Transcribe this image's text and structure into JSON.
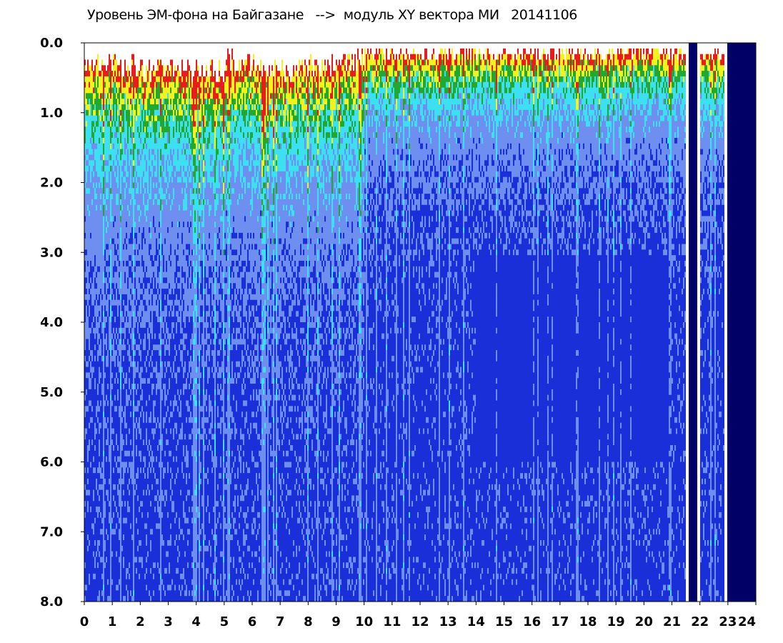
{
  "chart_data": {
    "type": "heatmap",
    "title": "Уровень ЭМ-фона на Байгазане   -->  модуль XY вектора МИ   20141106",
    "xlabel": "",
    "ylabel": "",
    "xlim": [
      0,
      24
    ],
    "ylim": [
      0,
      8
    ],
    "y_inverted": true,
    "grid": false,
    "x_ticks": [
      "0",
      "1",
      "2",
      "3",
      "4",
      "5",
      "6",
      "7",
      "8",
      "9",
      "10",
      "11",
      "12",
      "13",
      "14",
      "15",
      "16",
      "17",
      "18",
      "19",
      "20",
      "21",
      "22",
      "23",
      "24"
    ],
    "y_ticks": [
      "0.0",
      "1.0",
      "2.0",
      "3.0",
      "4.0",
      "5.0",
      "6.0",
      "7.0",
      "8.0"
    ],
    "color_scale": {
      "low": "#1a2fd8",
      "mid_low": "#6f8ff0",
      "mid": "#3ce0f0",
      "mid_high": "#22a830",
      "high_yellow": "#f2f21e",
      "highest": "#e81c1c",
      "no_data": "#000066"
    },
    "intensity_top_edge_by_hour": [
      {
        "hour": 0,
        "edge": 0.1
      },
      {
        "hour": 1,
        "edge": 0.15
      },
      {
        "hour": 2,
        "edge": 0.2
      },
      {
        "hour": 3,
        "edge": 0.2
      },
      {
        "hour": 4,
        "edge": 0.2
      },
      {
        "hour": 5,
        "edge": 0.1
      },
      {
        "hour": 6,
        "edge": 0.15
      },
      {
        "hour": 7,
        "edge": 0.2
      },
      {
        "hour": 8,
        "edge": 0.15
      },
      {
        "hour": 9,
        "edge": 0.1
      },
      {
        "hour": 10,
        "edge": 0.05
      },
      {
        "hour": 11,
        "edge": 0.05
      },
      {
        "hour": 12,
        "edge": 0.05
      },
      {
        "hour": 13,
        "edge": 0.05
      },
      {
        "hour": 14,
        "edge": 0.05
      },
      {
        "hour": 15,
        "edge": 0.05
      },
      {
        "hour": 16,
        "edge": 0.05
      },
      {
        "hour": 17,
        "edge": 0.05
      },
      {
        "hour": 18,
        "edge": 0.05
      },
      {
        "hour": 19,
        "edge": 0.05
      },
      {
        "hour": 20,
        "edge": 0.05
      },
      {
        "hour": 21,
        "edge": 0.05
      },
      {
        "hour": 22,
        "edge": 0.05
      },
      {
        "hour": 23,
        "edge": 0.05
      }
    ],
    "no_data_intervals": [
      [
        21.6,
        21.9
      ],
      [
        23.0,
        24.0
      ]
    ],
    "gaps_white": [
      [
        21.5,
        21.6
      ],
      [
        21.9,
        22.0
      ],
      [
        22.9,
        23.0
      ]
    ]
  }
}
